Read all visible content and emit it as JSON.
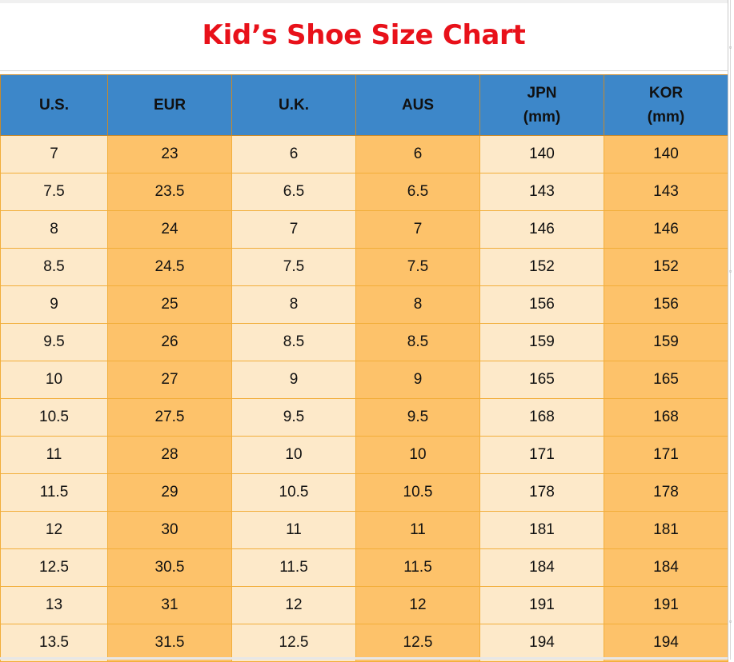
{
  "title": "Kid’s Shoe Size Chart",
  "headers": [
    {
      "line1": "U.S.",
      "line2": ""
    },
    {
      "line1": "EUR",
      "line2": ""
    },
    {
      "line1": "U.K.",
      "line2": ""
    },
    {
      "line1": "AUS",
      "line2": ""
    },
    {
      "line1": "JPN",
      "line2": "(mm)"
    },
    {
      "line1": "KOR",
      "line2": "(mm)"
    }
  ],
  "rows": [
    [
      "7",
      "23",
      "6",
      "6",
      "140",
      "140"
    ],
    [
      "7.5",
      "23.5",
      "6.5",
      "6.5",
      "143",
      "143"
    ],
    [
      "8",
      "24",
      "7",
      "7",
      "146",
      "146"
    ],
    [
      "8.5",
      "24.5",
      "7.5",
      "7.5",
      "152",
      "152"
    ],
    [
      "9",
      "25",
      "8",
      "8",
      "156",
      "156"
    ],
    [
      "9.5",
      "26",
      "8.5",
      "8.5",
      "159",
      "159"
    ],
    [
      "10",
      "27",
      "9",
      "9",
      "165",
      "165"
    ],
    [
      "10.5",
      "27.5",
      "9.5",
      "9.5",
      "168",
      "168"
    ],
    [
      "11",
      "28",
      "10",
      "10",
      "171",
      "171"
    ],
    [
      "11.5",
      "29",
      "10.5",
      "10.5",
      "178",
      "178"
    ],
    [
      "12",
      "30",
      "11",
      "11",
      "181",
      "181"
    ],
    [
      "12.5",
      "30.5",
      "11.5",
      "11.5",
      "184",
      "184"
    ],
    [
      "13",
      "31",
      "12",
      "12",
      "191",
      "191"
    ],
    [
      "13.5",
      "31.5",
      "12.5",
      "12.5",
      "194",
      "194"
    ]
  ],
  "colors": {
    "title": "#e8111a",
    "header_bg": "#3d87c9",
    "cell_light": "#fde9c9",
    "cell_dark": "#fdc26a",
    "grid": "#f2ae3a"
  }
}
